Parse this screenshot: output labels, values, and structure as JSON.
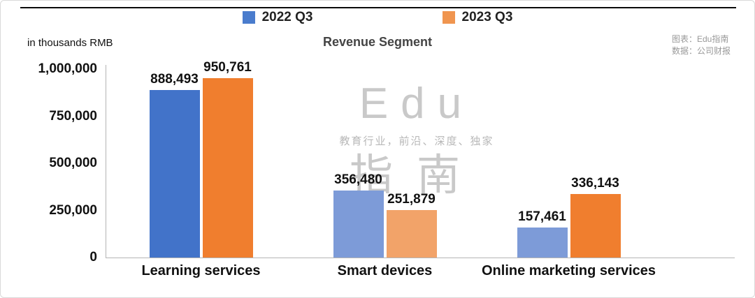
{
  "chart_data": {
    "type": "bar",
    "title": "Revenue Segment",
    "unit_label": "in thousands RMB",
    "categories": [
      "Learning services",
      "Smart devices",
      "Online marketing services"
    ],
    "series": [
      {
        "name": "2022 Q3",
        "legend_color": "#4a7ccd",
        "bar_colors": [
          "#4273c9",
          "#7d9bd8",
          "#7d9bd8"
        ],
        "values": [
          888493,
          356480,
          157461
        ],
        "labels": [
          "888,493",
          "356,480",
          "157,461"
        ]
      },
      {
        "name": "2023 Q3",
        "legend_color": "#f0954f",
        "bar_colors": [
          "#f07e2e",
          "#f2a369",
          "#f07e2e"
        ],
        "values": [
          950761,
          251879,
          336143
        ],
        "labels": [
          "950,761",
          "251,879",
          "336,143"
        ]
      }
    ],
    "y_ticks": [
      {
        "value": 1000000,
        "label": "1,000,000"
      },
      {
        "value": 750000,
        "label": "750,000"
      },
      {
        "value": 500000,
        "label": "500,000"
      },
      {
        "value": 250000,
        "label": "250,000"
      },
      {
        "value": 0,
        "label": "0"
      }
    ],
    "ylim": [
      0,
      1000000
    ],
    "legend_position": "top",
    "grid": false
  },
  "credits": {
    "chart": "图表：Edu指南",
    "data": "数据：公司财报"
  },
  "watermark": {
    "line1": "Edu",
    "line2": "教育行业，前沿、深度、独家",
    "line3": "指南"
  }
}
